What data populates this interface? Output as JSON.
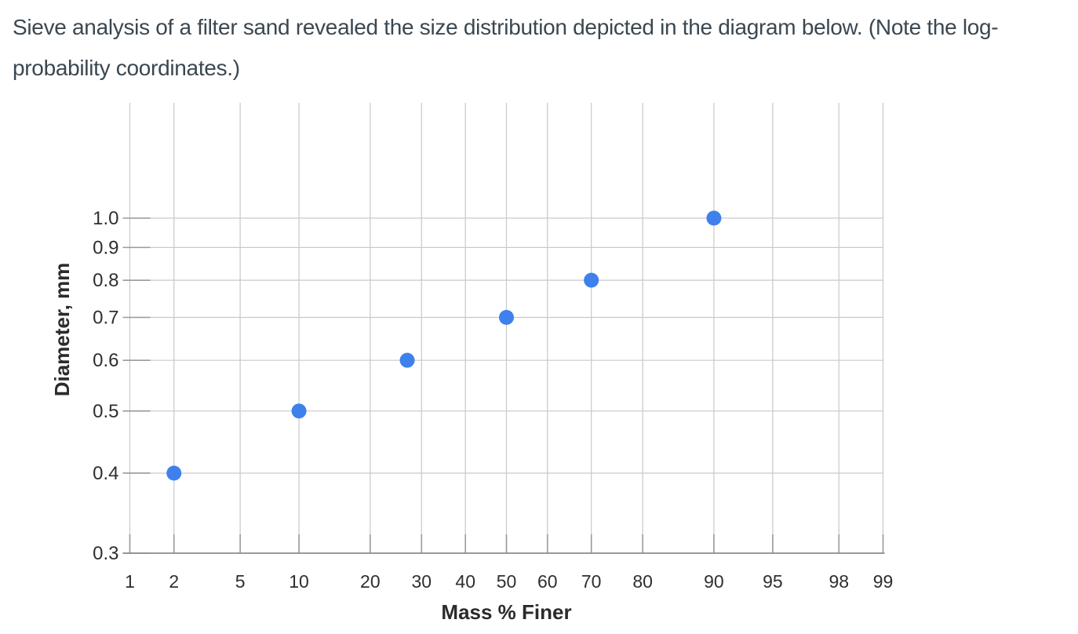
{
  "page": {
    "problem_statement": "Sieve analysis of a filter sand revealed the size distribution depicted in the diagram below. (Note the log-probability coordinates.)"
  },
  "chart_data": {
    "type": "scatter",
    "title": "",
    "xlabel": "Mass % Finer",
    "ylabel": "Diameter, mm",
    "x_scale": "probability",
    "y_scale": "log",
    "x_ticks": [
      1,
      2,
      5,
      10,
      20,
      30,
      40,
      50,
      60,
      70,
      80,
      90,
      95,
      98,
      99
    ],
    "y_ticks": [
      "1.0",
      "0.9",
      "0.8",
      "0.7",
      "0.6",
      "0.5",
      "0.4",
      "0.3"
    ],
    "xlim": [
      1,
      99
    ],
    "ylim": [
      0.3,
      1.5
    ],
    "grid": true,
    "legend": false,
    "points": [
      {
        "mass_pct_finer": 2,
        "diameter_mm": 0.4
      },
      {
        "mass_pct_finer": 10,
        "diameter_mm": 0.5
      },
      {
        "mass_pct_finer": 27,
        "diameter_mm": 0.6
      },
      {
        "mass_pct_finer": 50,
        "diameter_mm": 0.7
      },
      {
        "mass_pct_finer": 70,
        "diameter_mm": 0.8
      },
      {
        "mass_pct_finer": 90,
        "diameter_mm": 1.0
      }
    ],
    "colors": {
      "point": "#3e80ec",
      "gridline": "#c9c9c9",
      "axis_line": "#8d8d8d",
      "tick_mark": "#9a9a9a",
      "tick_text": "#2f2f2f",
      "label_text": "#2b2b2b"
    }
  }
}
